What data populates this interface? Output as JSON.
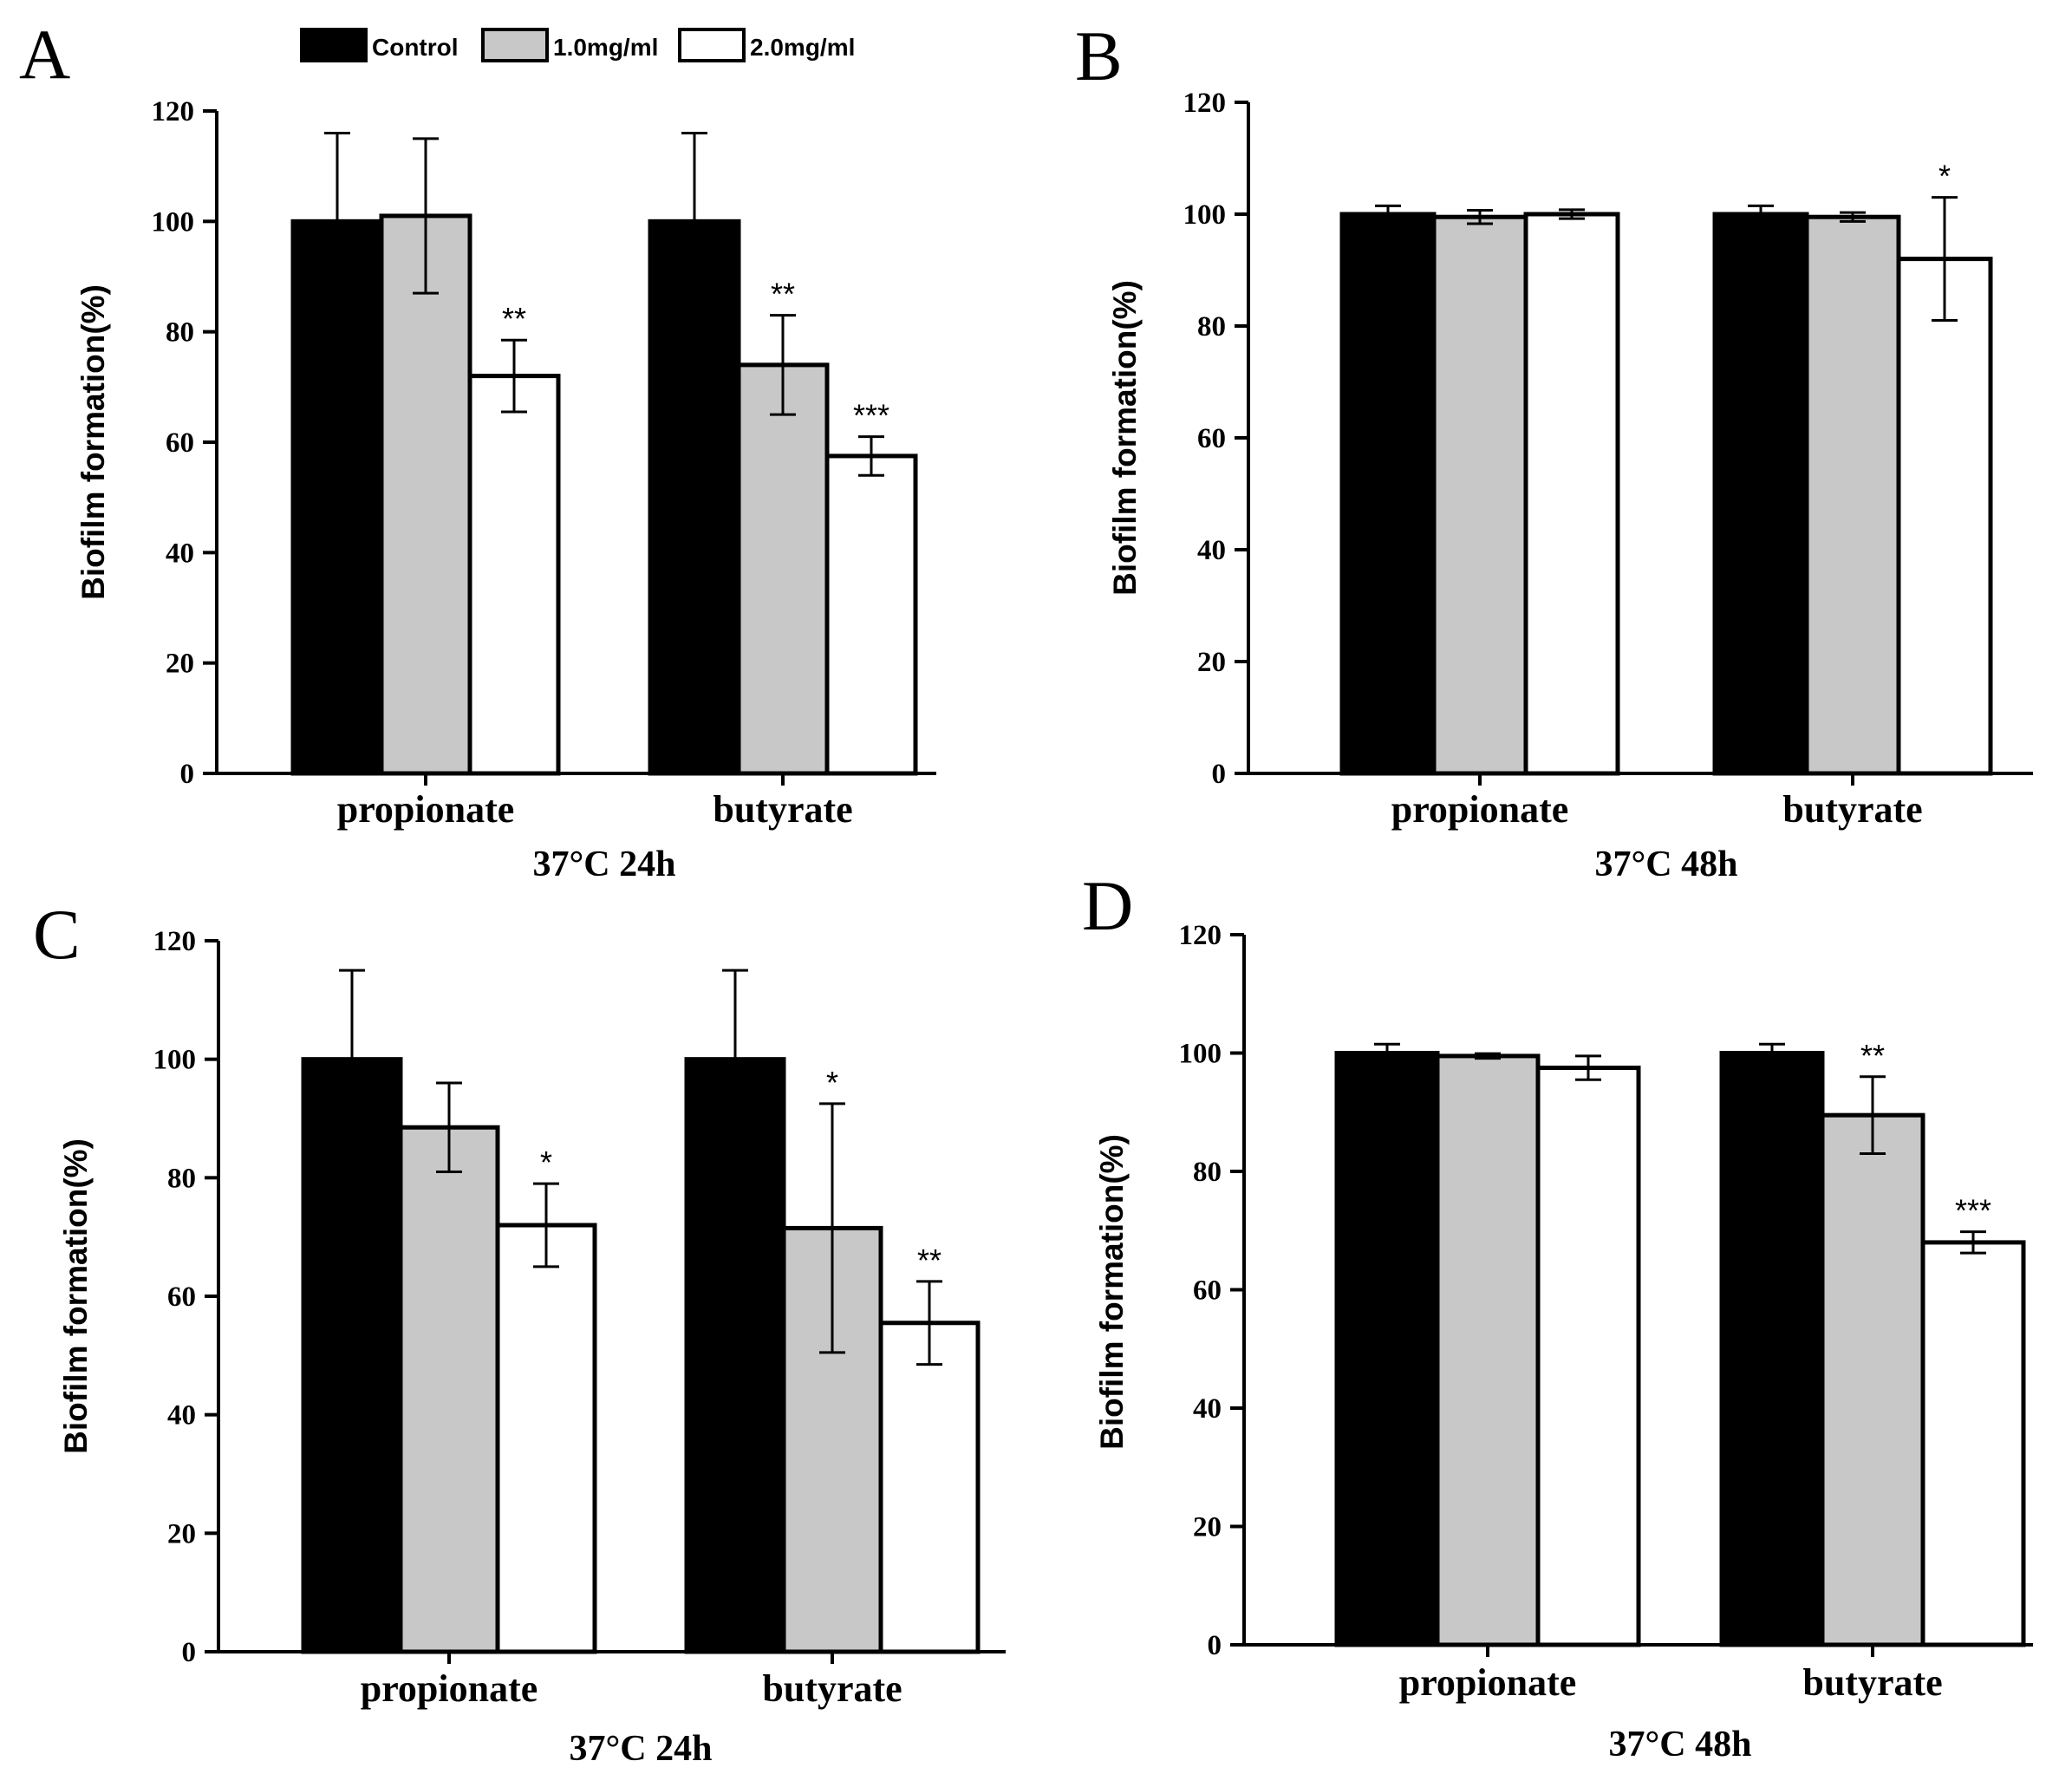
{
  "legend": {
    "entries": [
      {
        "label": "Control",
        "color": "#000000"
      },
      {
        "label": "1.0mg/ml",
        "color": "#c8c8c8"
      },
      {
        "label": "2.0mg/ml",
        "color": "#ffffff"
      }
    ]
  },
  "chart_data": [
    {
      "type": "bar",
      "panel": "A",
      "condition": "37°C 24h",
      "ylabel": "Biofilm formation(%)",
      "ylim": [
        0,
        120
      ],
      "yticks": [
        0,
        20,
        40,
        60,
        80,
        100,
        120
      ],
      "categories": [
        "propionate",
        "butyrate"
      ],
      "series": [
        {
          "name": "Control",
          "values": [
            100,
            100
          ],
          "errors": [
            16,
            16
          ],
          "sig": [
            "",
            ""
          ]
        },
        {
          "name": "1.0mg/ml",
          "values": [
            101,
            74
          ],
          "errors": [
            14,
            9
          ],
          "sig": [
            "",
            "**"
          ]
        },
        {
          "name": "2.0mg/ml",
          "values": [
            72,
            57.5
          ],
          "errors": [
            6.5,
            3.5
          ],
          "sig": [
            "**",
            "***"
          ]
        }
      ]
    },
    {
      "type": "bar",
      "panel": "B",
      "condition": "37°C 48h",
      "ylabel": "Biofilm formation(%)",
      "ylim": [
        0,
        120
      ],
      "yticks": [
        0,
        20,
        40,
        60,
        80,
        100,
        120
      ],
      "categories": [
        "propionate",
        "butyrate"
      ],
      "series": [
        {
          "name": "Control",
          "values": [
            100,
            100
          ],
          "errors": [
            1.5,
            1.5
          ],
          "sig": [
            "",
            ""
          ]
        },
        {
          "name": "1.0mg/ml",
          "values": [
            99.5,
            99.5
          ],
          "errors": [
            1.2,
            0.8
          ],
          "sig": [
            "",
            ""
          ]
        },
        {
          "name": "2.0mg/ml",
          "values": [
            100,
            92
          ],
          "errors": [
            0.8,
            11
          ],
          "sig": [
            "",
            "*"
          ]
        }
      ]
    },
    {
      "type": "bar",
      "panel": "C",
      "condition": "37°C 24h",
      "ylabel": "Biofilm formation(%)",
      "ylim": [
        0,
        120
      ],
      "yticks": [
        0,
        20,
        40,
        60,
        80,
        100,
        120
      ],
      "categories": [
        "propionate",
        "butyrate"
      ],
      "series": [
        {
          "name": "Control",
          "values": [
            100,
            100
          ],
          "errors": [
            15,
            15
          ],
          "sig": [
            "",
            ""
          ]
        },
        {
          "name": "1.0mg/ml",
          "values": [
            88.5,
            71.5
          ],
          "errors": [
            7.5,
            21
          ],
          "sig": [
            "",
            "*"
          ]
        },
        {
          "name": "2.0mg/ml",
          "values": [
            72,
            55.5
          ],
          "errors": [
            7,
            7
          ],
          "sig": [
            "*",
            "**"
          ]
        }
      ]
    },
    {
      "type": "bar",
      "panel": "D",
      "condition": "37°C 48h",
      "ylabel": "Biofilm formation(%)",
      "ylim": [
        0,
        120
      ],
      "yticks": [
        0,
        20,
        40,
        60,
        80,
        100,
        120
      ],
      "categories": [
        "propionate",
        "butyrate"
      ],
      "series": [
        {
          "name": "Control",
          "values": [
            100,
            100
          ],
          "errors": [
            1.5,
            1.5
          ],
          "sig": [
            "",
            ""
          ]
        },
        {
          "name": "1.0mg/ml",
          "values": [
            99.5,
            89.5
          ],
          "errors": [
            0.4,
            6.5
          ],
          "sig": [
            "",
            "**"
          ]
        },
        {
          "name": "2.0mg/ml",
          "values": [
            97.5,
            68
          ],
          "errors": [
            2,
            1.8
          ],
          "sig": [
            "",
            "***"
          ]
        }
      ]
    }
  ]
}
